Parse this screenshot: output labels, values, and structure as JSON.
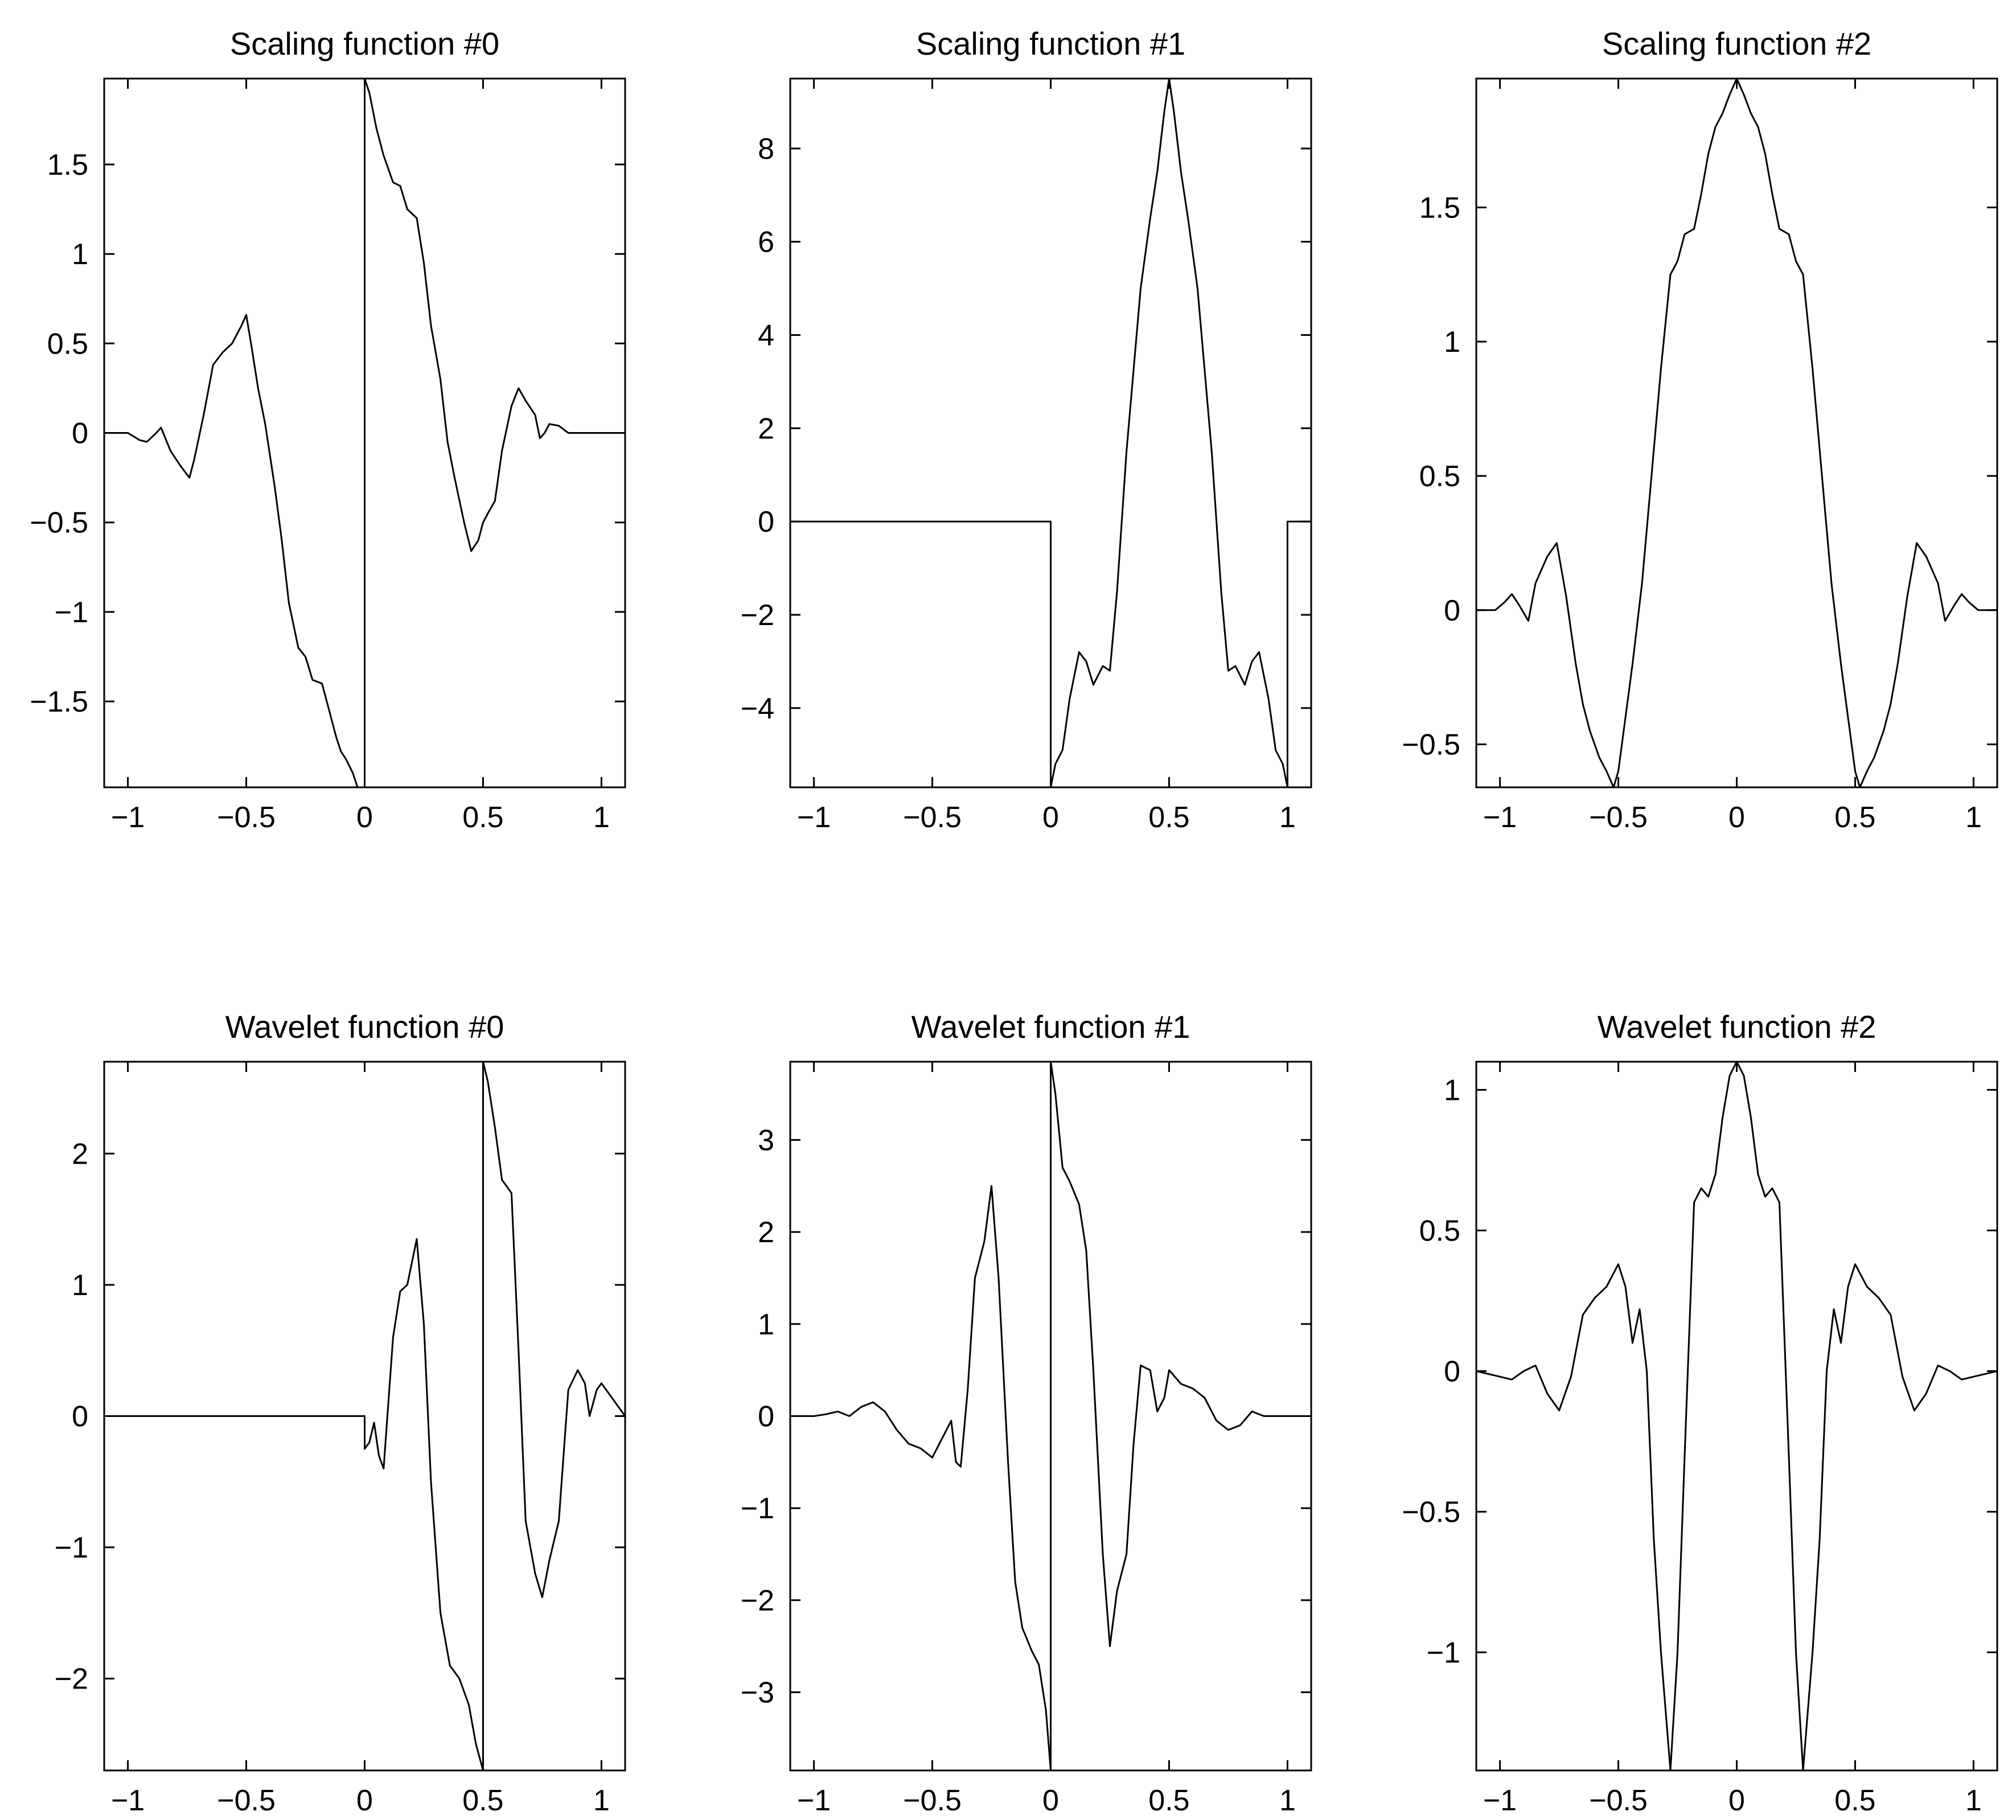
{
  "chart_data": [
    {
      "type": "line",
      "title": "Scaling function #0",
      "xlabel": "",
      "ylabel": "",
      "xlim": [
        -1.1,
        1.1
      ],
      "ylim": [
        -1.98,
        1.98
      ],
      "xticks": [
        -1,
        -0.5,
        0,
        0.5,
        1
      ],
      "xtick_labels": [
        "−1",
        "−0.5",
        "0",
        "0.5",
        "1"
      ],
      "yticks": [
        -1.5,
        -1,
        -0.5,
        0,
        0.5,
        1,
        1.5
      ],
      "ytick_labels": [
        "−1.5",
        "−1",
        "−0.5",
        "0",
        "0.5",
        "1",
        "1.5"
      ],
      "grid": false,
      "series": [
        {
          "x": [
            -1.1,
            -1.02,
            -1.0,
            -0.95,
            -0.92,
            -0.88,
            -0.86,
            -0.82,
            -0.78,
            -0.74,
            -0.72,
            -0.68,
            -0.64,
            -0.6,
            -0.56,
            -0.52,
            -0.5,
            -0.48,
            -0.45,
            -0.42,
            -0.38,
            -0.35,
            -0.32,
            -0.28,
            -0.25,
            -0.22,
            -0.18,
            -0.15,
            -0.12,
            -0.1,
            -0.08,
            -0.05,
            -0.03,
            0.0,
            0.0,
            0.02,
            0.05,
            0.08,
            0.12,
            0.15,
            0.18,
            0.22,
            0.25,
            0.28,
            0.32,
            0.35,
            0.38,
            0.42,
            0.45,
            0.48,
            0.5,
            0.52,
            0.55,
            0.58,
            0.62,
            0.65,
            0.68,
            0.72,
            0.74,
            0.76,
            0.78,
            0.82,
            0.86,
            0.88,
            0.92,
            0.95,
            1.0,
            1.02,
            1.1
          ],
          "y": [
            0,
            0,
            0,
            -0.04,
            -0.05,
            0,
            0.03,
            -0.1,
            -0.18,
            -0.25,
            -0.15,
            0.1,
            0.38,
            0.45,
            0.5,
            0.6,
            0.66,
            0.5,
            0.25,
            0.05,
            -0.3,
            -0.6,
            -0.95,
            -1.2,
            -1.25,
            -1.38,
            -1.4,
            -1.55,
            -1.7,
            -1.78,
            -1.82,
            -1.9,
            -1.98,
            -1.98,
            1.98,
            1.9,
            1.7,
            1.55,
            1.4,
            1.38,
            1.25,
            1.2,
            0.95,
            0.6,
            0.3,
            -0.05,
            -0.25,
            -0.5,
            -0.66,
            -0.6,
            -0.5,
            -0.45,
            -0.38,
            -0.1,
            0.15,
            0.25,
            0.18,
            0.1,
            -0.03,
            0,
            0.05,
            0.04,
            0,
            0,
            0,
            0,
            0,
            0,
            0
          ]
        }
      ]
    },
    {
      "type": "line",
      "title": "Scaling function #1",
      "xlabel": "",
      "ylabel": "",
      "xlim": [
        -1.1,
        1.1
      ],
      "ylim": [
        -5.7,
        9.5
      ],
      "xticks": [
        -1,
        -0.5,
        0,
        0.5,
        1
      ],
      "xtick_labels": [
        "−1",
        "−0.5",
        "0",
        "0.5",
        "1"
      ],
      "yticks": [
        -4,
        -2,
        0,
        2,
        4,
        6,
        8
      ],
      "ytick_labels": [
        "−4",
        "−2",
        "0",
        "2",
        "4",
        "6",
        "8"
      ],
      "grid": false,
      "series": [
        {
          "x": [
            -1.1,
            0.0,
            0.0,
            0.02,
            0.05,
            0.08,
            0.12,
            0.15,
            0.18,
            0.22,
            0.25,
            0.28,
            0.32,
            0.38,
            0.42,
            0.45,
            0.48,
            0.5,
            0.52,
            0.55,
            0.58,
            0.62,
            0.68,
            0.72,
            0.75,
            0.78,
            0.82,
            0.85,
            0.88,
            0.92,
            0.95,
            0.98,
            1.0,
            1.0,
            1.1
          ],
          "y": [
            0,
            0,
            -5.7,
            -5.2,
            -4.9,
            -3.8,
            -2.8,
            -3.0,
            -3.5,
            -3.1,
            -3.2,
            -1.5,
            1.5,
            5.0,
            6.5,
            7.5,
            8.8,
            9.5,
            8.8,
            7.5,
            6.5,
            5.0,
            1.5,
            -1.5,
            -3.2,
            -3.1,
            -3.5,
            -3.0,
            -2.8,
            -3.8,
            -4.9,
            -5.2,
            -5.7,
            0,
            0
          ]
        }
      ]
    },
    {
      "type": "line",
      "title": "Scaling function #2",
      "xlabel": "",
      "ylabel": "",
      "xlim": [
        -1.1,
        1.1
      ],
      "ylim": [
        -0.66,
        1.98
      ],
      "xticks": [
        -1,
        -0.5,
        0,
        0.5,
        1
      ],
      "xtick_labels": [
        "−1",
        "−0.5",
        "0",
        "0.5",
        "1"
      ],
      "yticks": [
        -0.5,
        0,
        0.5,
        1,
        1.5
      ],
      "ytick_labels": [
        "−0.5",
        "0",
        "0.5",
        "1",
        "1.5"
      ],
      "grid": false,
      "series": [
        {
          "x": [
            -1.1,
            -1.02,
            -0.98,
            -0.95,
            -0.92,
            -0.88,
            -0.85,
            -0.8,
            -0.76,
            -0.72,
            -0.68,
            -0.65,
            -0.62,
            -0.58,
            -0.55,
            -0.52,
            -0.5,
            -0.47,
            -0.44,
            -0.4,
            -0.36,
            -0.32,
            -0.28,
            -0.25,
            -0.22,
            -0.18,
            -0.15,
            -0.12,
            -0.09,
            -0.06,
            -0.03,
            0.0,
            0.03,
            0.06,
            0.09,
            0.12,
            0.15,
            0.18,
            0.22,
            0.25,
            0.28,
            0.32,
            0.36,
            0.4,
            0.44,
            0.47,
            0.5,
            0.52,
            0.55,
            0.58,
            0.62,
            0.65,
            0.68,
            0.72,
            0.76,
            0.8,
            0.85,
            0.88,
            0.92,
            0.95,
            0.98,
            1.02,
            1.1
          ],
          "y": [
            0,
            0,
            0.03,
            0.06,
            0.02,
            -0.04,
            0.1,
            0.2,
            0.25,
            0.05,
            -0.2,
            -0.35,
            -0.45,
            -0.55,
            -0.6,
            -0.66,
            -0.6,
            -0.4,
            -0.2,
            0.1,
            0.5,
            0.9,
            1.25,
            1.3,
            1.4,
            1.42,
            1.55,
            1.7,
            1.8,
            1.85,
            1.92,
            1.98,
            1.92,
            1.85,
            1.8,
            1.7,
            1.55,
            1.42,
            1.4,
            1.3,
            1.25,
            0.9,
            0.5,
            0.1,
            -0.2,
            -0.4,
            -0.6,
            -0.66,
            -0.6,
            -0.55,
            -0.45,
            -0.35,
            -0.2,
            0.05,
            0.25,
            0.2,
            0.1,
            -0.04,
            0.02,
            0.06,
            0.03,
            0,
            0
          ]
        }
      ]
    },
    {
      "type": "line",
      "title": "Wavelet function #0",
      "xlabel": "",
      "ylabel": "",
      "xlim": [
        -1.1,
        1.1
      ],
      "ylim": [
        -2.7,
        2.7
      ],
      "xticks": [
        -1,
        -0.5,
        0,
        0.5,
        1
      ],
      "xtick_labels": [
        "−1",
        "−0.5",
        "0",
        "0.5",
        "1"
      ],
      "yticks": [
        -2,
        -1,
        0,
        1,
        2
      ],
      "ytick_labels": [
        "−2",
        "−1",
        "0",
        "1",
        "2"
      ],
      "grid": false,
      "series": [
        {
          "x": [
            -1.1,
            0.0,
            0.0,
            0.02,
            0.04,
            0.06,
            0.08,
            0.1,
            0.12,
            0.15,
            0.18,
            0.22,
            0.25,
            0.28,
            0.32,
            0.36,
            0.4,
            0.44,
            0.47,
            0.5,
            0.5,
            0.52,
            0.55,
            0.58,
            0.62,
            0.65,
            0.68,
            0.72,
            0.75,
            0.78,
            0.82,
            0.86,
            0.9,
            0.93,
            0.95,
            0.98,
            1.0,
            1.1
          ],
          "y": [
            0,
            0,
            -0.25,
            -0.2,
            -0.05,
            -0.3,
            -0.4,
            0.1,
            0.6,
            0.95,
            1.0,
            1.35,
            0.7,
            -0.5,
            -1.5,
            -1.9,
            -2.0,
            -2.2,
            -2.5,
            -2.7,
            2.7,
            2.55,
            2.2,
            1.8,
            1.7,
            0.5,
            -0.8,
            -1.2,
            -1.38,
            -1.1,
            -0.8,
            0.2,
            0.35,
            0.25,
            0.0,
            0.2,
            0.25,
            0
          ]
        }
      ]
    },
    {
      "type": "line",
      "title": "Wavelet function #1",
      "xlabel": "",
      "ylabel": "",
      "xlim": [
        -1.1,
        1.1
      ],
      "ylim": [
        -3.85,
        3.85
      ],
      "xticks": [
        -1,
        -0.5,
        0,
        0.5,
        1
      ],
      "xtick_labels": [
        "−1",
        "−0.5",
        "0",
        "0.5",
        "1"
      ],
      "yticks": [
        -3,
        -2,
        -1,
        0,
        1,
        2,
        3
      ],
      "ytick_labels": [
        "−3",
        "−2",
        "−1",
        "0",
        "1",
        "2",
        "3"
      ],
      "grid": false,
      "series": [
        {
          "x": [
            -1.1,
            -1.0,
            -0.95,
            -0.9,
            -0.85,
            -0.8,
            -0.75,
            -0.7,
            -0.65,
            -0.6,
            -0.55,
            -0.5,
            -0.45,
            -0.42,
            -0.4,
            -0.38,
            -0.35,
            -0.32,
            -0.28,
            -0.25,
            -0.22,
            -0.18,
            -0.15,
            -0.12,
            -0.08,
            -0.05,
            -0.02,
            0.0,
            0.0,
            0.02,
            0.05,
            0.08,
            0.12,
            0.15,
            0.18,
            0.22,
            0.25,
            0.28,
            0.32,
            0.35,
            0.38,
            0.42,
            0.45,
            0.48,
            0.5,
            0.55,
            0.6,
            0.65,
            0.7,
            0.75,
            0.8,
            0.85,
            0.9,
            0.95,
            1.0,
            1.1
          ],
          "y": [
            0,
            0,
            0.02,
            0.05,
            0.0,
            0.1,
            0.15,
            0.05,
            -0.15,
            -0.3,
            -0.35,
            -0.45,
            -0.2,
            -0.05,
            -0.5,
            -0.55,
            0.3,
            1.5,
            1.9,
            2.5,
            1.5,
            -0.5,
            -1.8,
            -2.3,
            -2.55,
            -2.7,
            -3.2,
            -3.85,
            3.85,
            3.5,
            2.7,
            2.55,
            2.3,
            1.8,
            0.5,
            -1.5,
            -2.5,
            -1.9,
            -1.5,
            -0.3,
            0.55,
            0.5,
            0.05,
            0.2,
            0.5,
            0.35,
            0.3,
            0.2,
            -0.05,
            -0.15,
            -0.1,
            0.05,
            0.0,
            0.0,
            0.0,
            0
          ]
        }
      ]
    },
    {
      "type": "line",
      "title": "Wavelet function #2",
      "xlabel": "",
      "ylabel": "",
      "xlim": [
        -1.1,
        1.1
      ],
      "ylim": [
        -1.42,
        1.1
      ],
      "xticks": [
        -1,
        -0.5,
        0,
        0.5,
        1
      ],
      "xtick_labels": [
        "−1",
        "−0.5",
        "0",
        "0.5",
        "1"
      ],
      "yticks": [
        -1,
        -0.5,
        0,
        0.5,
        1
      ],
      "ytick_labels": [
        "−1",
        "−0.5",
        "0",
        "0.5",
        "1"
      ],
      "grid": false,
      "series": [
        {
          "x": [
            -1.1,
            -1.0,
            -0.95,
            -0.9,
            -0.85,
            -0.8,
            -0.75,
            -0.7,
            -0.65,
            -0.6,
            -0.55,
            -0.5,
            -0.47,
            -0.44,
            -0.41,
            -0.38,
            -0.35,
            -0.32,
            -0.28,
            -0.25,
            -0.22,
            -0.18,
            -0.15,
            -0.12,
            -0.09,
            -0.06,
            -0.03,
            0.0,
            0.03,
            0.06,
            0.09,
            0.12,
            0.15,
            0.18,
            0.22,
            0.25,
            0.28,
            0.32,
            0.35,
            0.38,
            0.41,
            0.44,
            0.47,
            0.5,
            0.55,
            0.6,
            0.65,
            0.7,
            0.75,
            0.8,
            0.85,
            0.9,
            0.95,
            1.0,
            1.1
          ],
          "y": [
            0,
            -0.02,
            -0.03,
            0.0,
            0.02,
            -0.08,
            -0.14,
            -0.02,
            0.2,
            0.26,
            0.3,
            0.38,
            0.3,
            0.1,
            0.22,
            0.0,
            -0.6,
            -1.0,
            -1.42,
            -1.0,
            -0.3,
            0.6,
            0.65,
            0.62,
            0.7,
            0.9,
            1.05,
            1.1,
            1.05,
            0.9,
            0.7,
            0.62,
            0.65,
            0.6,
            -0.3,
            -1.0,
            -1.42,
            -1.0,
            -0.6,
            0.0,
            0.22,
            0.1,
            0.3,
            0.38,
            0.3,
            0.26,
            0.2,
            -0.02,
            -0.14,
            -0.08,
            0.02,
            0.0,
            -0.03,
            -0.02,
            0
          ]
        }
      ]
    }
  ]
}
